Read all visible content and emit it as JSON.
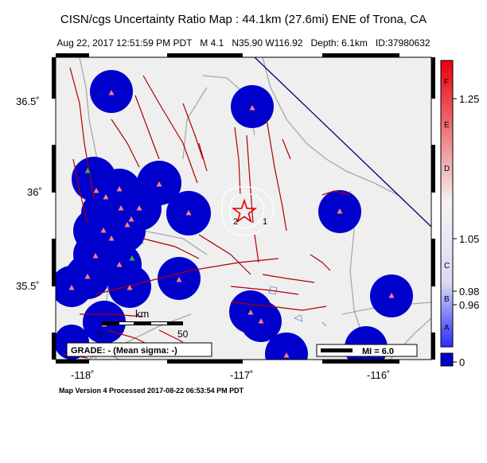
{
  "title": "CISN/cgs Uncertainty Ratio Map : 44.1km (27.6mi) ENE of Trona, CA",
  "subtitle": "Aug 22, 2017 12:51:59 PM PDT   M 4.1   N35.90 W116.92   Depth: 6.1km   ID:37980632",
  "footer": "Map Version 4 Processed 2017-08-22 06:53:54 PM PDT",
  "axes": {
    "lat_ticks": [
      "36.5˚",
      "36˚",
      "35.5˚"
    ],
    "lon_ticks": [
      "-118˚",
      "-117˚",
      "-116˚"
    ]
  },
  "scalebar": {
    "unit": "km",
    "zero": "0",
    "max": "50"
  },
  "grade_box": "GRADE: - (Mean sigma: -)",
  "mi_legend": "MI = 6.0",
  "contour_labels": [
    "2",
    "1"
  ],
  "colorbar": {
    "letters": [
      "F",
      "E",
      "D",
      "C",
      "B",
      "A"
    ],
    "values": [
      "1.25",
      "1.05",
      "0.98",
      "0.96",
      "0"
    ],
    "colors": {
      "top": "#e8000a",
      "mid": "#f2f2f2",
      "bottom": "#1a1aff",
      "base": "#0000c8"
    }
  },
  "colors": {
    "land": "#efefef",
    "station_blob": "#0000cc",
    "fault": "#b00000",
    "road": "#a8a8a8",
    "water": "#6f8fd8",
    "border": "#000066",
    "station_marker": "#ff8080",
    "epicenter": "#e00000"
  },
  "symbols": {
    "epicenter": "star-icon",
    "station": "triangle-icon"
  }
}
